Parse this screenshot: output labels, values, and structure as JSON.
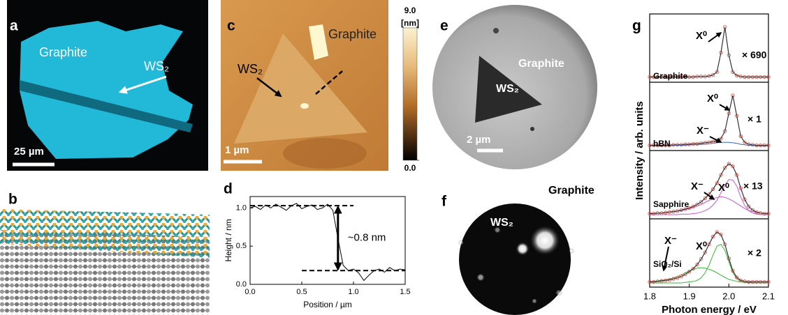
{
  "panel_a": {
    "letter": "a",
    "graphite": "Graphite",
    "flake": "WS₂",
    "scale_bar": "25 µm"
  },
  "panel_b": {
    "letter": "b"
  },
  "panel_c": {
    "letter": "c",
    "graphite": "Graphite",
    "flake": "WS₂",
    "scale_bar": "1 µm",
    "colorbar": {
      "unit": "[nm]",
      "lim": [
        0,
        9
      ],
      "ticks": [
        {
          "value": 0,
          "label": "0.0"
        },
        {
          "value": 9,
          "label": "9.0"
        }
      ]
    }
  },
  "panel_e": {
    "letter": "e",
    "graphite": "Graphite",
    "flake": "WS₂",
    "scale_bar": "2 µm"
  },
  "panel_f": {
    "letter": "f",
    "graphite": "Graphite",
    "flake": "WS₂"
  },
  "chart_data": [
    {
      "type": "line",
      "letter": "d",
      "xlabel": "Position / µm",
      "ylabel": "Height / nm",
      "annotation": "~0.8 nm",
      "x": [
        0,
        0.05,
        0.1,
        0.15,
        0.2,
        0.25,
        0.3,
        0.35,
        0.4,
        0.45,
        0.5,
        0.55,
        0.6,
        0.65,
        0.7,
        0.75,
        0.8,
        0.85,
        0.9,
        0.95,
        1.0,
        1.05,
        1.1,
        1.15,
        1.2,
        1.25,
        1.3,
        1.35,
        1.4,
        1.45,
        1.5
      ],
      "series": [
        {
          "color": "#000000",
          "values": [
            1.0,
            1.02,
            0.98,
            1.04,
            1.0,
            1.05,
            1.01,
            0.97,
            1.03,
            1.06,
            0.99,
            1.02,
            1.04,
            0.98,
            1.0,
            1.05,
            0.97,
            0.6,
            0.25,
            0.18,
            0.2,
            0.15,
            0.05,
            0.12,
            0.18,
            0.2,
            0.16,
            0.22,
            0.18,
            0.2,
            0.19
          ]
        }
      ],
      "reference_levels": [
        1.03,
        0.18
      ],
      "xlim": [
        0,
        1.5
      ],
      "ylim": [
        0,
        1.15
      ],
      "xticks": [
        {
          "value": 0,
          "label": "0.0"
        },
        0.5,
        {
          "value": 1,
          "label": "1.0"
        },
        1.5
      ],
      "yticks": [
        {
          "value": 0,
          "label": "0.0"
        },
        0.5,
        {
          "value": 1,
          "label": "1.0"
        }
      ]
    },
    {
      "type": "line",
      "letter": "g",
      "xlabel": "Photon energy / eV",
      "ylabel": "Intensity / arb. units",
      "x": [
        1.8,
        1.81,
        1.82,
        1.83,
        1.84,
        1.85,
        1.86,
        1.87,
        1.88,
        1.89,
        1.9,
        1.91,
        1.92,
        1.93,
        1.94,
        1.95,
        1.96,
        1.97,
        1.98,
        1.99,
        2.0,
        2.01,
        2.02,
        2.03,
        2.04,
        2.05,
        2.06,
        2.07,
        2.08,
        2.09,
        2.1
      ],
      "xlim": [
        1.8,
        2.1
      ],
      "ylim": [
        0,
        1.15
      ],
      "xticks": [
        1.8,
        1.9,
        {
          "value": 2,
          "label": "2.0"
        },
        2.1
      ],
      "fit_color": "#333333",
      "panels": [
        {
          "sample": "Graphite",
          "factor": "× 690",
          "peak_labels": [
            "X⁰"
          ],
          "points": {
            "color": "#e0554f",
            "values": [
              0.02,
              0.02,
              0.02,
              0.02,
              0.02,
              0.02,
              0.02,
              0.02,
              0.02,
              0.02,
              0.02,
              0.02,
              0.03,
              0.03,
              0.03,
              0.04,
              0.06,
              0.12,
              0.5,
              1.0,
              0.45,
              0.12,
              0.05,
              0.03,
              0.02,
              0.02,
              0.02,
              0.02,
              0.02,
              0.02,
              0.02
            ]
          },
          "components": []
        },
        {
          "sample": "hBN",
          "factor": "× 1",
          "peak_labels": [
            "X⁰",
            "X⁻"
          ],
          "points": {
            "color": "#e0554f",
            "values": [
              0.02,
              0.02,
              0.02,
              0.02,
              0.02,
              0.02,
              0.03,
              0.03,
              0.03,
              0.04,
              0.04,
              0.05,
              0.05,
              0.06,
              0.07,
              0.08,
              0.09,
              0.11,
              0.15,
              0.3,
              0.65,
              1.0,
              0.6,
              0.2,
              0.08,
              0.04,
              0.03,
              0.02,
              0.02,
              0.02,
              0.02
            ]
          },
          "components": [
            {
              "color": "#3366cc",
              "values": [
                0.01,
                0.01,
                0.01,
                0.01,
                0.01,
                0.01,
                0.02,
                0.02,
                0.02,
                0.02,
                0.03,
                0.03,
                0.03,
                0.04,
                0.04,
                0.05,
                0.06,
                0.07,
                0.08,
                0.08,
                0.08,
                0.07,
                0.06,
                0.04,
                0.03,
                0.02,
                0.02,
                0.01,
                0.01,
                0.01,
                0.01
              ]
            }
          ]
        },
        {
          "sample": "Sapphire",
          "factor": "× 13",
          "peak_labels": [
            "X⁻",
            "X⁰"
          ],
          "points": {
            "color": "#e0554f",
            "values": [
              0.02,
              0.02,
              0.03,
              0.03,
              0.04,
              0.05,
              0.06,
              0.07,
              0.09,
              0.11,
              0.13,
              0.16,
              0.2,
              0.25,
              0.32,
              0.4,
              0.5,
              0.62,
              0.78,
              0.92,
              1.0,
              0.95,
              0.78,
              0.52,
              0.3,
              0.16,
              0.09,
              0.05,
              0.03,
              0.02,
              0.02
            ]
          },
          "components": [
            {
              "color": "#cc55cc",
              "values": [
                0.02,
                0.02,
                0.03,
                0.03,
                0.04,
                0.05,
                0.06,
                0.07,
                0.08,
                0.1,
                0.12,
                0.14,
                0.17,
                0.2,
                0.24,
                0.28,
                0.31,
                0.34,
                0.35,
                0.34,
                0.31,
                0.27,
                0.22,
                0.17,
                0.12,
                0.08,
                0.06,
                0.04,
                0.03,
                0.02,
                0.02
              ]
            },
            {
              "color": "#cc55cc",
              "values": [
                0,
                0,
                0,
                0,
                0,
                0,
                0,
                0,
                0.01,
                0.01,
                0.01,
                0.02,
                0.03,
                0.05,
                0.08,
                0.12,
                0.19,
                0.28,
                0.43,
                0.58,
                0.69,
                0.68,
                0.56,
                0.35,
                0.18,
                0.08,
                0.03,
                0.01,
                0,
                0,
                0
              ]
            }
          ]
        },
        {
          "sample": "SiO₂/Si",
          "factor": "× 2",
          "peak_labels": [
            "X⁻",
            "X⁰"
          ],
          "points": {
            "color": "#e0554f",
            "values": [
              0.02,
              0.02,
              0.03,
              0.04,
              0.05,
              0.06,
              0.08,
              0.1,
              0.13,
              0.17,
              0.22,
              0.28,
              0.36,
              0.47,
              0.6,
              0.76,
              0.91,
              1.0,
              0.95,
              0.76,
              0.48,
              0.24,
              0.11,
              0.05,
              0.03,
              0.02,
              0.02,
              0.02,
              0.02,
              0.02,
              0.02
            ]
          },
          "components": [
            {
              "color": "#33bb33",
              "values": [
                0.02,
                0.03,
                0.04,
                0.05,
                0.06,
                0.08,
                0.1,
                0.13,
                0.16,
                0.2,
                0.24,
                0.27,
                0.29,
                0.3,
                0.29,
                0.27,
                0.24,
                0.2,
                0.15,
                0.11,
                0.07,
                0.05,
                0.03,
                0.02,
                0.01,
                0.01,
                0,
                0,
                0,
                0,
                0
              ]
            },
            {
              "color": "#33bb33",
              "values": [
                0,
                0,
                0,
                0,
                0,
                0,
                0,
                0,
                0,
                0.01,
                0.02,
                0.03,
                0.05,
                0.1,
                0.2,
                0.35,
                0.55,
                0.72,
                0.76,
                0.64,
                0.42,
                0.2,
                0.08,
                0.03,
                0.01,
                0,
                0,
                0,
                0,
                0,
                0
              ]
            }
          ]
        }
      ]
    }
  ]
}
